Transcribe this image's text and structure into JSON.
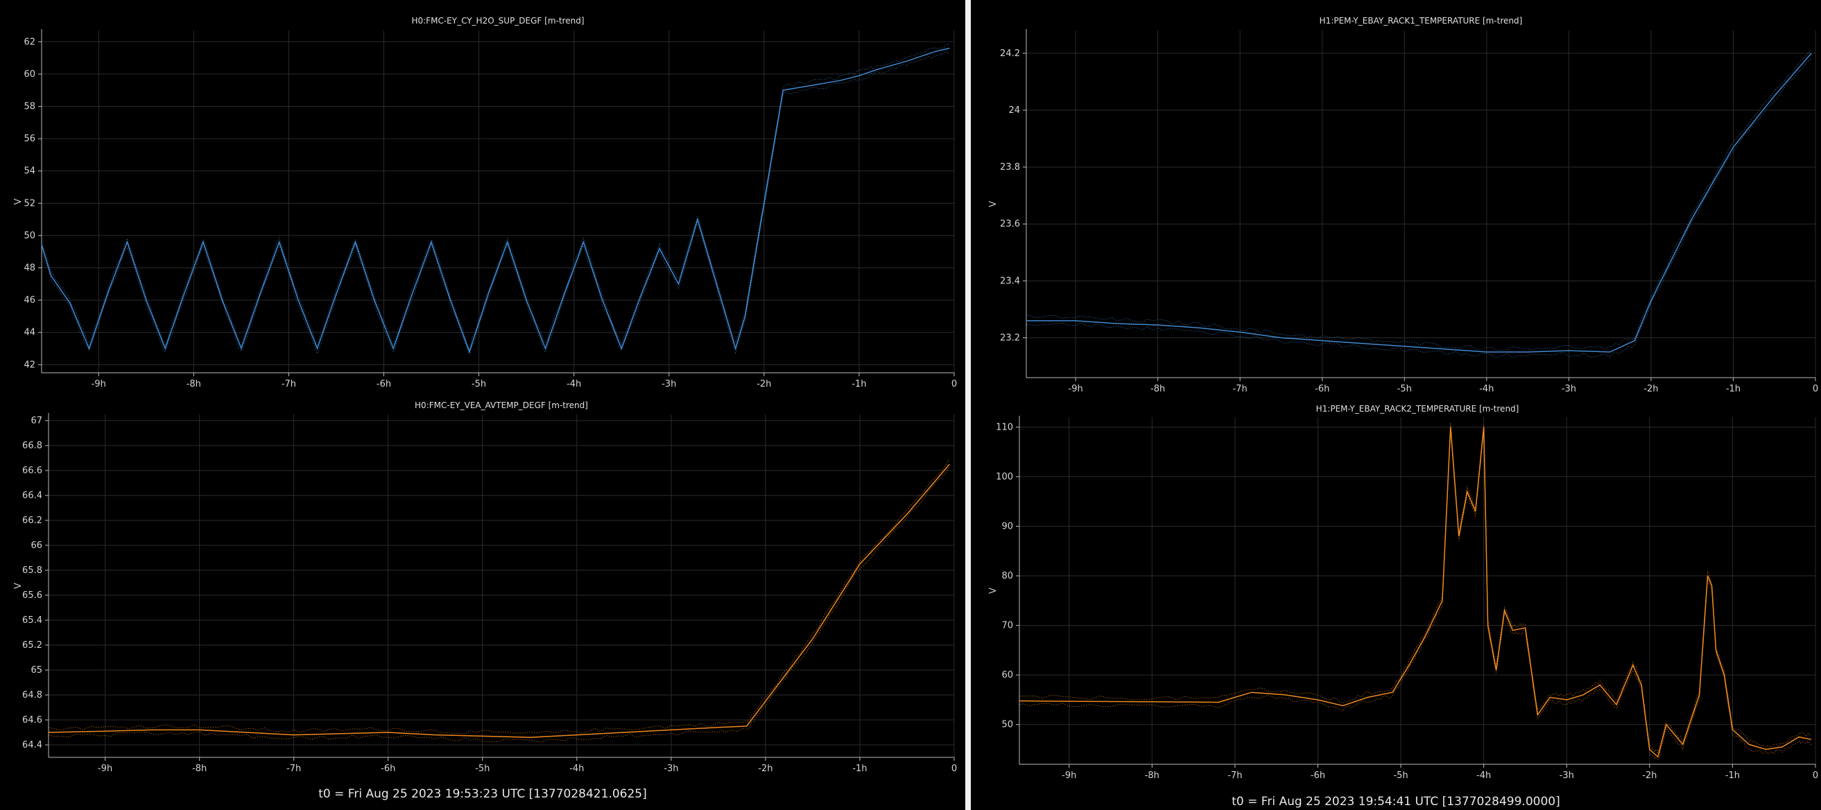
{
  "panels": {
    "left": {
      "footer": "t0 = Fri Aug 25 2023 19:53:23 UTC [1377028421.0625]"
    },
    "right": {
      "footer": "t0 = Fri Aug 25 2023 19:54:41 UTC [1377028499.0000]"
    }
  },
  "colors": {
    "blue": "#3f8ad2",
    "orange": "#f08a1c",
    "grid": "#2b2b2b",
    "axis": "#bdbdbd"
  },
  "chart_data": [
    {
      "type": "line",
      "title": "H0:FMC-EY_CY_H2O_SUP_DEGF [m-trend]",
      "ylabel": "V",
      "xlim": [
        -9.6,
        0
      ],
      "ylim": [
        41.5,
        62.7
      ],
      "xticks": [
        -9,
        -8,
        -7,
        -6,
        -5,
        -4,
        -3,
        -2,
        -1,
        0
      ],
      "xtick_labels": [
        "-9h",
        "-8h",
        "-7h",
        "-6h",
        "-5h",
        "-4h",
        "-3h",
        "-2h",
        "-1h",
        "0"
      ],
      "yticks": [
        42,
        44,
        46,
        48,
        50,
        52,
        54,
        56,
        58,
        60,
        62
      ],
      "ytick_labels": [
        "42",
        "44",
        "46",
        "48",
        "50",
        "52",
        "54",
        "56",
        "58",
        "60",
        "62"
      ],
      "color": "#3f8ad2",
      "grid": true,
      "series": [
        {
          "x": [
            -9.62,
            -9.5,
            -9.3,
            -9.1,
            -8.9,
            -8.7,
            -8.5,
            -8.3,
            -8.1,
            -7.9,
            -7.7,
            -7.5,
            -7.3,
            -7.1,
            -6.9,
            -6.7,
            -6.5,
            -6.3,
            -6.1,
            -5.9,
            -5.7,
            -5.5,
            -5.3,
            -5.1,
            -4.9,
            -4.7,
            -4.5,
            -4.3,
            -4.1,
            -3.9,
            -3.7,
            -3.5,
            -3.3,
            -3.1,
            -2.9,
            -2.7,
            -2.5,
            -2.3,
            -2.2,
            -2.0,
            -1.8,
            -1.5,
            -1.2,
            -1.0,
            -0.8,
            -0.5,
            -0.2,
            -0.05
          ],
          "y": [
            49.8,
            47.5,
            45.8,
            43.0,
            46.5,
            49.6,
            46.0,
            43.0,
            46.4,
            49.6,
            46.0,
            43.0,
            46.4,
            49.6,
            46.0,
            43.0,
            46.4,
            49.6,
            46.0,
            43.0,
            46.4,
            49.6,
            46.0,
            42.8,
            46.4,
            49.6,
            46.0,
            43.0,
            46.4,
            49.6,
            46.0,
            43.0,
            46.2,
            49.2,
            47.0,
            51.0,
            47.0,
            43.0,
            45.0,
            52.0,
            59.0,
            59.3,
            59.6,
            59.9,
            60.3,
            60.8,
            61.4,
            61.6
          ]
        }
      ]
    },
    {
      "type": "line",
      "title": "H0:FMC-EY_VEA_AVTEMP_DEGF [m-trend]",
      "ylabel": "V",
      "xlim": [
        -9.6,
        0
      ],
      "ylim": [
        64.3,
        67.05
      ],
      "xticks": [
        -9,
        -8,
        -7,
        -6,
        -5,
        -4,
        -3,
        -2,
        -1,
        0
      ],
      "xtick_labels": [
        "-9h",
        "-8h",
        "-7h",
        "-6h",
        "-5h",
        "-4h",
        "-3h",
        "-2h",
        "-1h",
        "0"
      ],
      "yticks": [
        64.4,
        64.6,
        64.8,
        65,
        65.2,
        65.4,
        65.6,
        65.8,
        66,
        66.2,
        66.4,
        66.6,
        66.8,
        67
      ],
      "ytick_labels": [
        "64.4",
        "64.6",
        "64.8",
        "65",
        "65.2",
        "65.4",
        "65.6",
        "65.8",
        "66",
        "66.2",
        "66.4",
        "66.6",
        "66.8",
        "67"
      ],
      "color": "#f08a1c",
      "grid": true,
      "series": [
        {
          "x": [
            -9.62,
            -9.0,
            -8.5,
            -8.0,
            -7.5,
            -7.0,
            -6.5,
            -6.0,
            -5.5,
            -5.0,
            -4.5,
            -4.0,
            -3.5,
            -3.0,
            -2.5,
            -2.2,
            -2.0,
            -1.5,
            -1.0,
            -0.5,
            -0.05
          ],
          "y": [
            64.5,
            64.51,
            64.52,
            64.52,
            64.5,
            64.48,
            64.49,
            64.5,
            64.48,
            64.47,
            64.46,
            64.48,
            64.5,
            64.52,
            64.54,
            64.55,
            64.75,
            65.25,
            65.85,
            66.25,
            66.65
          ]
        }
      ]
    },
    {
      "type": "line",
      "title": "H1:PEM-Y_EBAY_RACK1_TEMPERATURE [m-trend]",
      "ylabel": "V",
      "xlim": [
        -9.6,
        0
      ],
      "ylim": [
        23.06,
        24.28
      ],
      "xticks": [
        -9,
        -8,
        -7,
        -6,
        -5,
        -4,
        -3,
        -2,
        -1,
        0
      ],
      "xtick_labels": [
        "-9h",
        "-8h",
        "-7h",
        "-6h",
        "-5h",
        "-4h",
        "-3h",
        "-2h",
        "-1h",
        "0"
      ],
      "yticks": [
        23.2,
        23.4,
        23.6,
        23.8,
        24,
        24.2
      ],
      "ytick_labels": [
        "23.2",
        "23.4",
        "23.6",
        "23.8",
        "24",
        "24.2"
      ],
      "color": "#3f8ad2",
      "grid": true,
      "series": [
        {
          "x": [
            -9.65,
            -9.0,
            -8.5,
            -8.0,
            -7.5,
            -7.0,
            -6.5,
            -6.0,
            -5.5,
            -5.0,
            -4.5,
            -4.0,
            -3.5,
            -3.0,
            -2.5,
            -2.2,
            -2.0,
            -1.5,
            -1.0,
            -0.5,
            -0.05
          ],
          "y": [
            23.26,
            23.26,
            23.25,
            23.245,
            23.235,
            23.22,
            23.2,
            23.19,
            23.18,
            23.17,
            23.16,
            23.15,
            23.15,
            23.155,
            23.15,
            23.19,
            23.33,
            23.62,
            23.87,
            24.05,
            24.2
          ]
        }
      ]
    },
    {
      "type": "line",
      "title": "H1:PEM-Y_EBAY_RACK2_TEMPERATURE [m-trend]",
      "ylabel": "V",
      "xlim": [
        -9.6,
        0
      ],
      "ylim": [
        42,
        112
      ],
      "xticks": [
        -9,
        -8,
        -7,
        -6,
        -5,
        -4,
        -3,
        -2,
        -1,
        0
      ],
      "xtick_labels": [
        "-9h",
        "-8h",
        "-7h",
        "-6h",
        "-5h",
        "-4h",
        "-3h",
        "-2h",
        "-1h",
        "0"
      ],
      "yticks": [
        50,
        60,
        70,
        80,
        90,
        100,
        110
      ],
      "ytick_labels": [
        "50",
        "60",
        "70",
        "80",
        "90",
        "100",
        "110"
      ],
      "color": "#f08a1c",
      "grid": true,
      "series": [
        {
          "x": [
            -9.65,
            -9.0,
            -8.0,
            -7.2,
            -6.8,
            -6.4,
            -6.0,
            -5.7,
            -5.4,
            -5.1,
            -4.9,
            -4.7,
            -4.5,
            -4.4,
            -4.3,
            -4.2,
            -4.1,
            -4.0,
            -3.95,
            -3.85,
            -3.75,
            -3.65,
            -3.5,
            -3.35,
            -3.2,
            -3.0,
            -2.8,
            -2.6,
            -2.4,
            -2.2,
            -2.1,
            -2.0,
            -1.9,
            -1.8,
            -1.6,
            -1.4,
            -1.3,
            -1.25,
            -1.2,
            -1.1,
            -1.0,
            -0.8,
            -0.6,
            -0.4,
            -0.2,
            -0.05
          ],
          "y": [
            54.8,
            54.7,
            54.6,
            54.5,
            56.5,
            56.0,
            55.0,
            53.8,
            55.5,
            56.5,
            62.0,
            68.0,
            75.0,
            110.0,
            88.0,
            97.0,
            93.0,
            110.0,
            70.0,
            61.0,
            73.0,
            69.0,
            69.5,
            52.0,
            55.5,
            55.0,
            56.0,
            58.0,
            54.0,
            62.0,
            58.0,
            45.0,
            43.5,
            50.0,
            46.0,
            56.0,
            80.0,
            78.0,
            65.0,
            60.0,
            49.0,
            46.0,
            45.0,
            45.5,
            47.5,
            47.0
          ]
        }
      ]
    }
  ]
}
